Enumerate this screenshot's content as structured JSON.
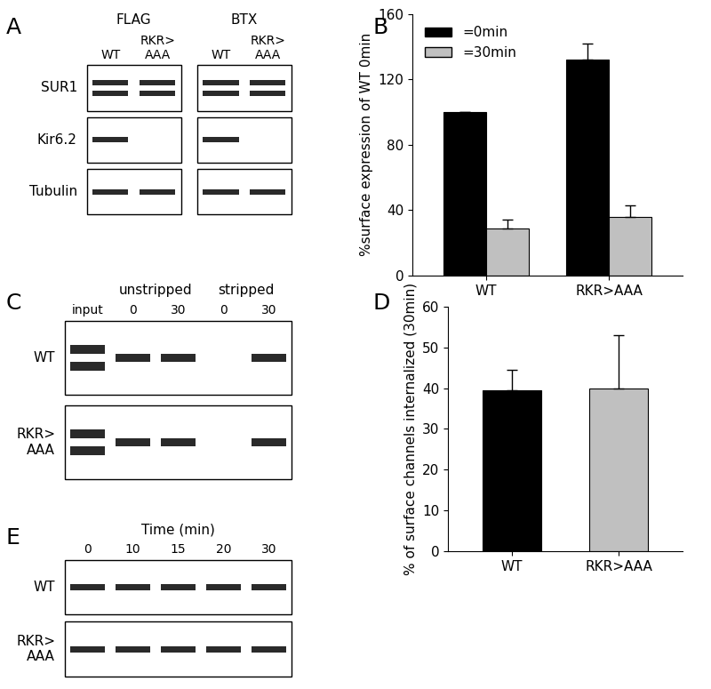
{
  "panel_labels": [
    "A",
    "B",
    "C",
    "D",
    "E"
  ],
  "blots": [
    {
      "separate_boxes": true,
      "groups": [
        {
          "label": "FLAG",
          "lanes": [
            "WT",
            "RKR>\nAAA"
          ]
        },
        {
          "label": "BTX",
          "lanes": [
            "WT",
            "RKR>\nAAA"
          ]
        }
      ],
      "rows": [
        {
          "label": "SUR1",
          "bands": [
            2,
            2,
            2,
            2
          ]
        },
        {
          "label": "Kir6.2",
          "bands": [
            1,
            0,
            1,
            0
          ]
        },
        {
          "label": "Tubulin",
          "bands": [
            1,
            1,
            1,
            1
          ]
        }
      ]
    },
    {
      "separate_boxes": false,
      "groups": [
        {
          "lanes": [
            "input"
          ]
        },
        {
          "label": "unstripped",
          "lanes": [
            "0",
            "30"
          ]
        },
        {
          "label": "stripped",
          "lanes": [
            "0",
            "30"
          ]
        }
      ],
      "rows": [
        {
          "label": "WT",
          "bands": [
            2,
            1,
            1,
            0,
            1
          ]
        },
        {
          "label": "RKR>\nAAA",
          "bands": [
            2,
            1,
            1,
            0,
            1
          ]
        }
      ]
    },
    {
      "separate_boxes": false,
      "groups": [
        {
          "label": "Time (min)",
          "lanes": [
            "0",
            "10",
            "15",
            "20",
            "30"
          ]
        }
      ],
      "rows": [
        {
          "label": "WT",
          "bands": [
            1,
            1,
            1,
            1,
            1
          ]
        },
        {
          "label": "RKR>\nAAA",
          "bands": [
            1,
            1,
            1,
            1,
            1
          ]
        }
      ]
    }
  ],
  "chart_data": [
    {
      "type": "bar",
      "categories": [
        "WT",
        "RKR>AAA"
      ],
      "y_label": "%surface expression of WT 0min",
      "series": [
        {
          "name": "=0min",
          "color": "#000000",
          "values": [
            100,
            132
          ],
          "errors": [
            0,
            10
          ]
        },
        {
          "name": "=30min",
          "color": "#c0c0c0",
          "values": [
            29,
            36
          ],
          "errors": [
            5,
            7
          ]
        }
      ],
      "ylim": [
        0,
        160
      ],
      "yticks": [
        0,
        40,
        80,
        120,
        160
      ],
      "legend": "upper left"
    },
    {
      "type": "bar",
      "categories": [
        "WT",
        "RKR>AAA"
      ],
      "y_label": "% of surface channels internalized (30min)",
      "values": [
        39.5,
        40
      ],
      "errors": [
        5,
        13
      ],
      "colors": [
        "#000000",
        "#c0c0c0"
      ],
      "ylim": [
        0,
        60
      ],
      "yticks": [
        0,
        10,
        20,
        30,
        40,
        50,
        60
      ]
    }
  ]
}
